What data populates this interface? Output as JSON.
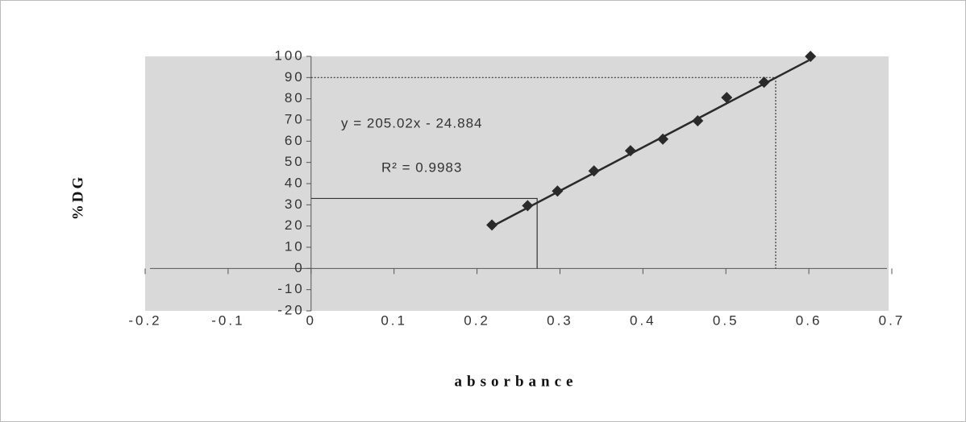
{
  "chart_data": {
    "type": "scatter",
    "x_label": "absorbance",
    "y_label": "%DG",
    "xlim": [
      -0.2,
      0.7
    ],
    "xticks": [
      -0.2,
      -0.1,
      0,
      0.1,
      0.2,
      0.3,
      0.4,
      0.5,
      0.6,
      0.7
    ],
    "ylim": [
      -20,
      100
    ],
    "yticks": [
      -20,
      -10,
      0,
      10,
      20,
      30,
      40,
      50,
      60,
      70,
      80,
      90,
      100
    ],
    "series": [
      {
        "color": "#2a2a2a",
        "x": [
          0.218,
          0.261,
          0.297,
          0.341,
          0.385,
          0.424,
          0.466,
          0.501,
          0.546,
          0.602
        ],
        "values": [
          20.5,
          29.6,
          36.5,
          46,
          55.5,
          61,
          69.6,
          80.6,
          87.8,
          100
        ]
      }
    ],
    "trendline": {
      "slope": 205.02,
      "intercept": -24.884,
      "x_range": [
        0.22,
        0.6
      ],
      "color": "#2a2a2a",
      "equation_label": "y = 205.02x - 24.884",
      "r2_label": "R² = 0.9983"
    },
    "reference_lines": [
      {
        "x": 0.2725,
        "y": 33,
        "style": "solid"
      },
      {
        "x": 0.56,
        "y": 90,
        "style": "dotted"
      }
    ]
  }
}
